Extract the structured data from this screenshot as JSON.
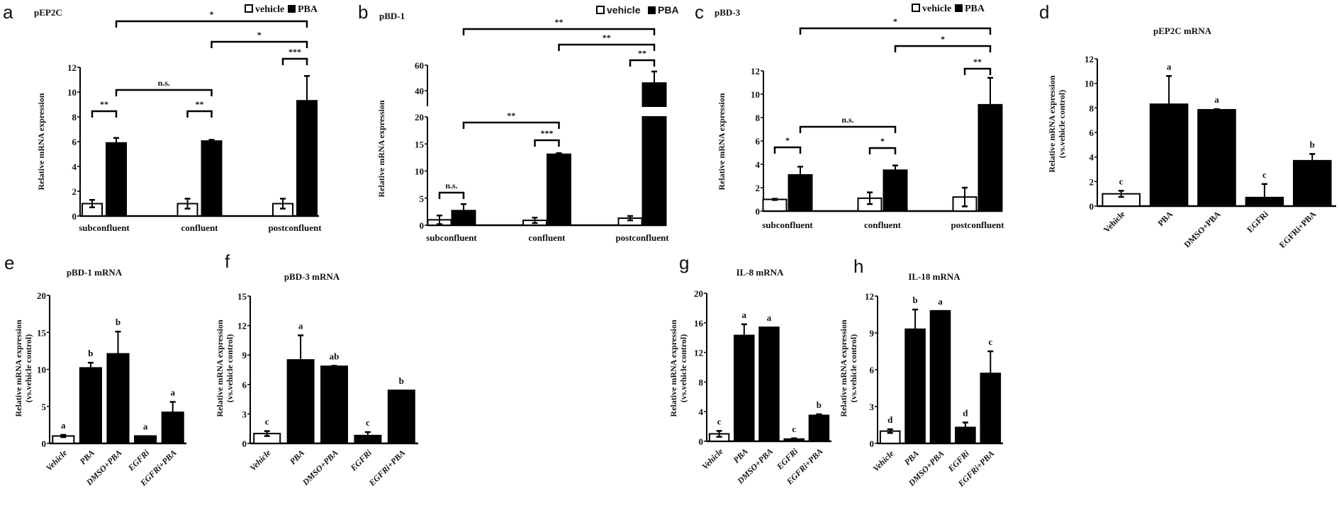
{
  "chart_data": [
    {
      "panel": "a",
      "type": "bar",
      "title": "pEP2C",
      "ylabel": [
        "Relative mRNA expression"
      ],
      "categories": [
        "subconfluent",
        "confluent",
        "postconfluent"
      ],
      "ylim": [
        0,
        12
      ],
      "yticks": [
        0,
        2,
        4,
        6,
        8,
        10,
        12
      ],
      "legend": {
        "position": "top-right",
        "entries": [
          "vehicle",
          "PBA"
        ]
      },
      "series": [
        {
          "name": "vehicle",
          "values": [
            1.0,
            1.0,
            1.0
          ],
          "errors": [
            0.3,
            0.4,
            0.4
          ],
          "fill": "#ffffff"
        },
        {
          "name": "PBA",
          "values": [
            5.9,
            6.05,
            9.3
          ],
          "errors": [
            0.4,
            0.1,
            2.0
          ],
          "fill": "#000000"
        }
      ],
      "brackets": [
        {
          "label": "**",
          "from": [
            0,
            0
          ],
          "to": [
            0,
            1
          ]
        },
        {
          "label": "n.s.",
          "from": [
            0,
            1
          ],
          "to": [
            1,
            1
          ]
        },
        {
          "label": "**",
          "from": [
            1,
            0
          ],
          "to": [
            1,
            1
          ]
        },
        {
          "label": "***",
          "from": [
            2,
            0
          ],
          "to": [
            2,
            1
          ]
        },
        {
          "label": "*",
          "from": [
            1,
            1
          ],
          "to": [
            2,
            1
          ]
        },
        {
          "label": "*",
          "from": [
            0,
            1
          ],
          "to": [
            2,
            1
          ]
        }
      ]
    },
    {
      "panel": "b",
      "type": "bar",
      "title": "pBD-1",
      "ylabel": [
        "Relative mRNA expression"
      ],
      "categories": [
        "subconfluent",
        "confluent",
        "postconfluent"
      ],
      "ylim": [
        0,
        60
      ],
      "axis_break": [
        20,
        30
      ],
      "yticks": [
        0,
        5,
        10,
        15,
        20,
        40,
        60
      ],
      "legend": {
        "position": "top-right",
        "entries": [
          "vehicle",
          "PBA"
        ]
      },
      "series": [
        {
          "name": "vehicle",
          "values": [
            1.0,
            0.9,
            1.3
          ],
          "errors": [
            0.8,
            0.5,
            0.4
          ],
          "fill": "#ffffff"
        },
        {
          "name": "PBA",
          "values": [
            2.7,
            13.1,
            46.0
          ],
          "errors": [
            1.2,
            0.2,
            9.0
          ],
          "fill": "#000000"
        }
      ],
      "brackets": [
        {
          "label": "n.s.",
          "from": [
            0,
            0
          ],
          "to": [
            0,
            1
          ]
        },
        {
          "label": "**",
          "from": [
            0,
            1
          ],
          "to": [
            1,
            1
          ]
        },
        {
          "label": "***",
          "from": [
            1,
            0
          ],
          "to": [
            1,
            1
          ]
        },
        {
          "label": "**",
          "from": [
            2,
            0
          ],
          "to": [
            2,
            1
          ]
        },
        {
          "label": "**",
          "from": [
            1,
            1
          ],
          "to": [
            2,
            1
          ]
        },
        {
          "label": "**",
          "from": [
            0,
            1
          ],
          "to": [
            2,
            1
          ]
        }
      ]
    },
    {
      "panel": "c",
      "type": "bar",
      "title": "pBD-3",
      "ylabel": [
        "Relative mRNA expression"
      ],
      "categories": [
        "subconfluent",
        "confluent",
        "postconfluent"
      ],
      "ylim": [
        0,
        12
      ],
      "yticks": [
        0,
        2,
        4,
        6,
        8,
        10,
        12
      ],
      "legend": {
        "position": "top-right",
        "entries": [
          "vehicle",
          "PBA"
        ]
      },
      "series": [
        {
          "name": "vehicle",
          "values": [
            1.0,
            1.1,
            1.2
          ],
          "errors": [
            0.05,
            0.5,
            0.8
          ],
          "fill": "#ffffff"
        },
        {
          "name": "PBA",
          "values": [
            3.1,
            3.5,
            9.1
          ],
          "errors": [
            0.7,
            0.4,
            2.3
          ],
          "fill": "#000000"
        }
      ],
      "brackets": [
        {
          "label": "*",
          "from": [
            0,
            0
          ],
          "to": [
            0,
            1
          ]
        },
        {
          "label": "n.s.",
          "from": [
            0,
            1
          ],
          "to": [
            1,
            1
          ]
        },
        {
          "label": "*",
          "from": [
            1,
            0
          ],
          "to": [
            1,
            1
          ]
        },
        {
          "label": "**",
          "from": [
            2,
            0
          ],
          "to": [
            2,
            1
          ]
        },
        {
          "label": "*",
          "from": [
            1,
            1
          ],
          "to": [
            2,
            1
          ]
        },
        {
          "label": "*",
          "from": [
            0,
            1
          ],
          "to": [
            2,
            1
          ]
        }
      ]
    },
    {
      "panel": "d",
      "type": "bar",
      "title": "pEP2C mRNA",
      "ylabel": [
        "Relative mRNA expression",
        "(vs.vehicle control)"
      ],
      "categories": [
        "Vehicle",
        "PBA",
        "DMSO+PBA",
        "EGFRi",
        "EGFRi+PBA"
      ],
      "ylim": [
        0,
        12
      ],
      "yticks": [
        0,
        2,
        4,
        6,
        8,
        10,
        12
      ],
      "values": [
        1.0,
        8.3,
        7.85,
        0.7,
        3.7
      ],
      "errors": [
        0.25,
        2.3,
        0.05,
        1.1,
        0.55
      ],
      "fills": [
        "#ffffff",
        "#000000",
        "#000000",
        "#000000",
        "#000000"
      ],
      "letters": [
        "c",
        "a",
        "a",
        "c",
        "b"
      ]
    },
    {
      "panel": "e",
      "type": "bar",
      "title": "pBD-1 mRNA",
      "ylabel": [
        "Relative mRNA expression",
        "(vs.vehicle control)"
      ],
      "categories": [
        "Vehicle",
        "PBA",
        "DMSO+PBA",
        "EGFRi",
        "EGFRi+PBA"
      ],
      "ylim": [
        0,
        20
      ],
      "yticks": [
        0,
        5,
        10,
        15,
        20
      ],
      "values": [
        1.0,
        10.2,
        12.1,
        1.0,
        4.2
      ],
      "errors": [
        0.15,
        0.7,
        3.0,
        0.0,
        1.4
      ],
      "fills": [
        "#ffffff",
        "#000000",
        "#000000",
        "#000000",
        "#000000"
      ],
      "letters": [
        "a",
        "b",
        "b",
        "a",
        "a"
      ]
    },
    {
      "panel": "f",
      "type": "bar",
      "title": "pBD-3 mRNA",
      "ylabel": [
        "Relative mRNA expression",
        "(vs.vehicle control)"
      ],
      "categories": [
        "Vehicle",
        "PBA",
        "DMSO+PBA",
        "EGFRi",
        "EGFRi+PBA"
      ],
      "ylim": [
        0,
        15
      ],
      "yticks": [
        0,
        3,
        6,
        9,
        12,
        15
      ],
      "values": [
        1.0,
        8.5,
        7.85,
        0.8,
        5.4
      ],
      "errors": [
        0.25,
        2.5,
        0.05,
        0.35,
        0.0
      ],
      "fills": [
        "#ffffff",
        "#000000",
        "#000000",
        "#000000",
        "#000000"
      ],
      "letters": [
        "c",
        "a",
        "ab",
        "c",
        "b"
      ]
    },
    {
      "panel": "g",
      "type": "bar",
      "title": "IL-8 mRNA",
      "ylabel": [
        "Relative mRNA expression",
        "(vs.vehicle control)"
      ],
      "categories": [
        "Vehicle",
        "PBA",
        "DMSO+PBA",
        "EGFRi",
        "EGFRi+PBA"
      ],
      "ylim": [
        0,
        20
      ],
      "yticks": [
        0,
        4,
        8,
        12,
        16,
        20
      ],
      "values": [
        1.0,
        14.3,
        15.4,
        0.3,
        3.5
      ],
      "errors": [
        0.4,
        1.5,
        0.0,
        0.1,
        0.15
      ],
      "fills": [
        "#ffffff",
        "#000000",
        "#000000",
        "#000000",
        "#000000"
      ],
      "letters": [
        "c",
        "a",
        "a",
        "c",
        "b"
      ]
    },
    {
      "panel": "h",
      "type": "bar",
      "title": "IL-18 mRNA",
      "ylabel": [
        "Relative mRNA expression",
        "(vs.vehicle control)"
      ],
      "categories": [
        "Vehicle",
        "PBA",
        "DMSO+PBA",
        "EGFRi",
        "EGFRi+PBA"
      ],
      "ylim": [
        0,
        12
      ],
      "yticks": [
        0,
        3,
        6,
        9,
        12
      ],
      "values": [
        1.0,
        9.3,
        10.8,
        1.3,
        5.7
      ],
      "errors": [
        0.15,
        1.6,
        0.0,
        0.4,
        1.8
      ],
      "fills": [
        "#ffffff",
        "#000000",
        "#000000",
        "#000000",
        "#000000"
      ],
      "letters": [
        "d",
        "b",
        "a",
        "d",
        "c"
      ]
    }
  ]
}
